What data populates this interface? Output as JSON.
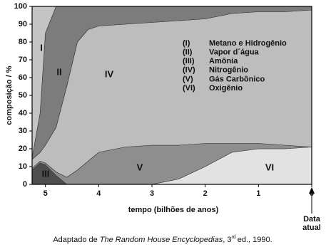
{
  "chart_data": {
    "type": "stacked_area",
    "x_label": "tempo (bilhões de anos)",
    "y_label": "composição / %",
    "annotation": [
      "Data",
      "atual"
    ],
    "caption": {
      "prefix": "Adaptado de ",
      "title": "The Random House Encyclopedias",
      "mid": ", 3",
      "sup": "rd",
      "suffix": "ed., 1990."
    },
    "x": [
      5.25,
      5.1,
      5.0,
      4.8,
      4.6,
      4.4,
      4.2,
      4.0,
      3.5,
      3.0,
      2.5,
      2.0,
      1.5,
      1.0,
      0.5,
      0
    ],
    "xlim": [
      5.25,
      0
    ],
    "xticks": [
      5,
      4,
      3,
      2,
      1,
      0
    ],
    "ylim": [
      0,
      100
    ],
    "yticks": [
      0,
      10,
      20,
      30,
      40,
      50,
      60,
      70,
      80,
      90,
      100
    ],
    "series": [
      {
        "key": "(III)",
        "label": "III",
        "name": "Amônia",
        "color": "#4e4e4e",
        "values": [
          8,
          12,
          11,
          5,
          0,
          0,
          0,
          0,
          0,
          0,
          0,
          0,
          0,
          0,
          0,
          0
        ]
      },
      {
        "key": "(VI)",
        "label": "VI",
        "name": "Oxigênio",
        "color": "#e2e2e2",
        "values": [
          0,
          0,
          0,
          0,
          0,
          0,
          0,
          0,
          0,
          0,
          3,
          10,
          18,
          20,
          20,
          21
        ]
      },
      {
        "key": "(V)",
        "label": "V",
        "name": "Gás Carbônico",
        "color": "#8e8e8e",
        "values": [
          1,
          1,
          1,
          2,
          4,
          8,
          13,
          18,
          21,
          22,
          19,
          13,
          5,
          3,
          2,
          0
        ]
      },
      {
        "key": "(IV)",
        "label": "IV",
        "name": "Nitrogênio",
        "color": "#bdbdbd",
        "values": [
          5,
          5,
          10,
          25,
          51,
          72,
          74,
          71,
          69,
          69,
          70,
          70,
          73,
          74,
          75,
          77
        ]
      },
      {
        "key": "(II)",
        "label": "II",
        "name": "Vapor d´água",
        "color": "#7c7c7c",
        "values": [
          1,
          22,
          63,
          68,
          45,
          20,
          13,
          11,
          10,
          9,
          8,
          7,
          4,
          3,
          3,
          2
        ]
      },
      {
        "key": "(I)",
        "label": "I",
        "name": "Metano e Hidrogênio",
        "color": "#c4c4c4",
        "values": [
          85,
          60,
          15,
          0,
          0,
          0,
          0,
          0,
          0,
          0,
          0,
          0,
          0,
          0,
          0,
          0
        ]
      }
    ]
  }
}
